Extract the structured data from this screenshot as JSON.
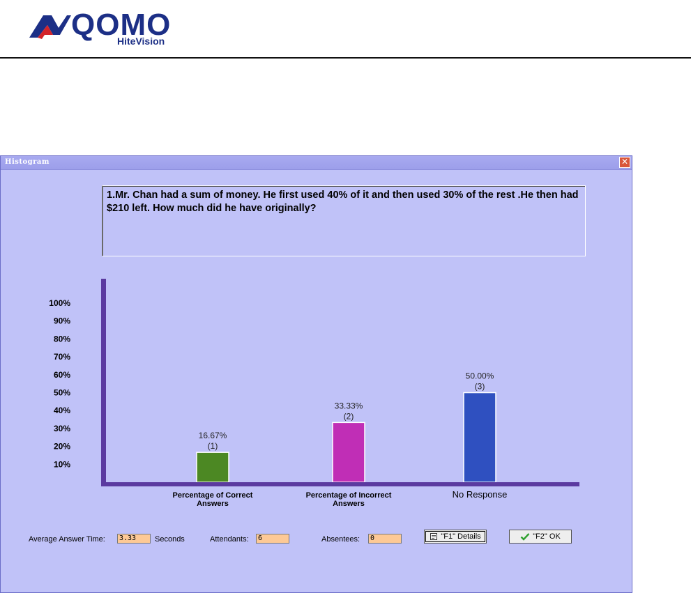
{
  "logo": {
    "word": "QOMO",
    "sub": "HiteVision"
  },
  "window": {
    "title": "Histogram",
    "close_glyph": "✕"
  },
  "question": {
    "text": "1.Mr. Chan had a sum of money. He first used 40% of it and then used 30% of the rest .He then had $210 left. How much did he have originally?"
  },
  "chart_data": {
    "type": "bar",
    "categories": [
      "Percentage of Correct Answers",
      "Percentage of Incorrect Answers",
      "No Response"
    ],
    "values": [
      16.67,
      33.33,
      50.0
    ],
    "counts": [
      1,
      2,
      3
    ],
    "value_labels": [
      "16.67%",
      "33.33%",
      "50.00%"
    ],
    "count_labels": [
      "(1)",
      "(2)",
      "(3)"
    ],
    "yticks": [
      "10%",
      "20%",
      "30%",
      "40%",
      "50%",
      "60%",
      "70%",
      "80%",
      "90%",
      "100%"
    ],
    "ylim": [
      0,
      100
    ],
    "grid": false,
    "colors": [
      "#4c8823",
      "#c02eb6",
      "#2f50c0"
    ],
    "axis_color": "#5b3aa0"
  },
  "footer": {
    "avg_time_label": "Average Answer Time:",
    "avg_time_value": "3.33",
    "seconds_label": "Seconds",
    "attendants_label": "Attendants:",
    "attendants_value": "6",
    "absentees_label": "Absentees:",
    "absentees_value": "0",
    "details_button": "\"F1\" Details",
    "ok_button": "\"F2\" OK"
  },
  "colors": {
    "window_bg": "#c0c2f8",
    "input_bg": "#fdc996",
    "logo_blue": "#1c2f86",
    "logo_red": "#d3242a"
  },
  "icons": {
    "details": "document-icon",
    "ok": "check-icon",
    "close": "close-icon"
  }
}
